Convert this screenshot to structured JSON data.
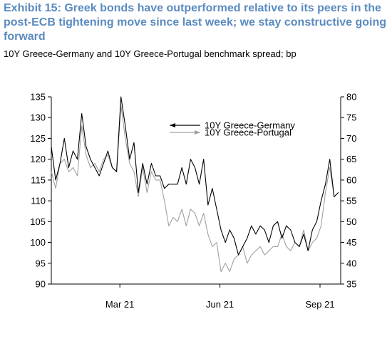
{
  "title": "Exhibit 15: Greek bonds have outperformed relative to its peers in the post-ECB tightening move since last week; we stay constructive going forward",
  "subtitle": "10Y Greece-Germany and 10Y Greece-Portugal benchmark spread; bp",
  "colors": {
    "title": "#5b8bc0",
    "series1": "#000000",
    "series2": "#a0a0a0"
  },
  "chart_data": {
    "type": "line",
    "title": "Exhibit 15: Greek bonds have outperformed relative to its peers in the post-ECB tightening move since last week; we stay constructive going forward",
    "subtitle": "10Y Greece-Germany and 10Y Greece-Portugal benchmark spread; bp",
    "x_tick_labels": [
      "Mar 21",
      "Jun 21",
      "Sep 21"
    ],
    "x_tick_dates": [
      "2021-03-01",
      "2021-06-01",
      "2021-09-01"
    ],
    "x_range": [
      "2020-12-28",
      "2021-09-20"
    ],
    "y_left": {
      "range": [
        90,
        135
      ],
      "ticks": [
        90,
        95,
        100,
        105,
        110,
        115,
        120,
        125,
        130,
        135
      ]
    },
    "y_right": {
      "range": [
        35,
        80
      ],
      "ticks": [
        35,
        40,
        45,
        50,
        55,
        60,
        65,
        70,
        75,
        80
      ]
    },
    "grid": false,
    "legend": "top-right",
    "series": [
      {
        "name": "10Y Greece-Germany",
        "axis": "left",
        "color": "#000000",
        "arrow": "left",
        "x": [
          "2020-12-28",
          "2021-01-01",
          "2021-01-05",
          "2021-01-09",
          "2021-01-13",
          "2021-01-17",
          "2021-01-21",
          "2021-01-25",
          "2021-01-29",
          "2021-02-02",
          "2021-02-06",
          "2021-02-10",
          "2021-02-14",
          "2021-02-18",
          "2021-02-22",
          "2021-02-26",
          "2021-03-02",
          "2021-03-06",
          "2021-03-10",
          "2021-03-14",
          "2021-03-18",
          "2021-03-22",
          "2021-03-26",
          "2021-03-30",
          "2021-04-03",
          "2021-04-07",
          "2021-04-11",
          "2021-04-15",
          "2021-04-19",
          "2021-04-23",
          "2021-04-27",
          "2021-05-01",
          "2021-05-05",
          "2021-05-09",
          "2021-05-13",
          "2021-05-17",
          "2021-05-21",
          "2021-05-25",
          "2021-05-29",
          "2021-06-02",
          "2021-06-06",
          "2021-06-10",
          "2021-06-14",
          "2021-06-18",
          "2021-06-22",
          "2021-06-26",
          "2021-06-30",
          "2021-07-04",
          "2021-07-08",
          "2021-07-12",
          "2021-07-16",
          "2021-07-20",
          "2021-07-24",
          "2021-07-28",
          "2021-08-01",
          "2021-08-05",
          "2021-08-09",
          "2021-08-13",
          "2021-08-17",
          "2021-08-21",
          "2021-08-25",
          "2021-08-29",
          "2021-09-02",
          "2021-09-06",
          "2021-09-10",
          "2021-09-14",
          "2021-09-18"
        ],
        "values": [
          123,
          115,
          119,
          125,
          118,
          122,
          120,
          131,
          123,
          120,
          118,
          116,
          119,
          122,
          118,
          117,
          135,
          128,
          120,
          124,
          112,
          119,
          114,
          119,
          116,
          116,
          113,
          114,
          114,
          114,
          118,
          114,
          120,
          118,
          114,
          120,
          109,
          113,
          108,
          103,
          100,
          103,
          101,
          97,
          99,
          101,
          104,
          102,
          104,
          103,
          100,
          104,
          105,
          101,
          104,
          103,
          100,
          99,
          102,
          98,
          103,
          105,
          110,
          114,
          120,
          111,
          112
        ]
      },
      {
        "name": "10Y Greece-Portugal",
        "axis": "right",
        "color": "#a0a0a0",
        "arrow": "right",
        "x": [
          "2020-12-28",
          "2021-01-01",
          "2021-01-05",
          "2021-01-09",
          "2021-01-13",
          "2021-01-17",
          "2021-01-21",
          "2021-01-25",
          "2021-01-29",
          "2021-02-02",
          "2021-02-06",
          "2021-02-10",
          "2021-02-14",
          "2021-02-18",
          "2021-02-22",
          "2021-02-26",
          "2021-03-02",
          "2021-03-06",
          "2021-03-10",
          "2021-03-14",
          "2021-03-18",
          "2021-03-22",
          "2021-03-26",
          "2021-03-30",
          "2021-04-03",
          "2021-04-07",
          "2021-04-11",
          "2021-04-15",
          "2021-04-19",
          "2021-04-23",
          "2021-04-27",
          "2021-05-01",
          "2021-05-05",
          "2021-05-09",
          "2021-05-13",
          "2021-05-17",
          "2021-05-21",
          "2021-05-25",
          "2021-05-29",
          "2021-06-02",
          "2021-06-06",
          "2021-06-10",
          "2021-06-14",
          "2021-06-18",
          "2021-06-22",
          "2021-06-26",
          "2021-06-30",
          "2021-07-04",
          "2021-07-08",
          "2021-07-12",
          "2021-07-16",
          "2021-07-20",
          "2021-07-24",
          "2021-07-28",
          "2021-08-01",
          "2021-08-05",
          "2021-08-09",
          "2021-08-13",
          "2021-08-17",
          "2021-08-21",
          "2021-08-25",
          "2021-08-29",
          "2021-09-02",
          "2021-09-06",
          "2021-09-10",
          "2021-09-14",
          "2021-09-18"
        ],
        "values": [
          62,
          58,
          64,
          65,
          62,
          63,
          61,
          73,
          66,
          63,
          64,
          62,
          65,
          66,
          63,
          62,
          78,
          70,
          64,
          62,
          56,
          63,
          57,
          62,
          60,
          60,
          55,
          49,
          51,
          50,
          53,
          49,
          53,
          52,
          49,
          52,
          47,
          44,
          45,
          38,
          40,
          38,
          41,
          42,
          44,
          40,
          42,
          43,
          44,
          42,
          43,
          44,
          44,
          47,
          44,
          43,
          45,
          44,
          48,
          43,
          45,
          46,
          49,
          57,
          63,
          56,
          57
        ]
      }
    ]
  }
}
